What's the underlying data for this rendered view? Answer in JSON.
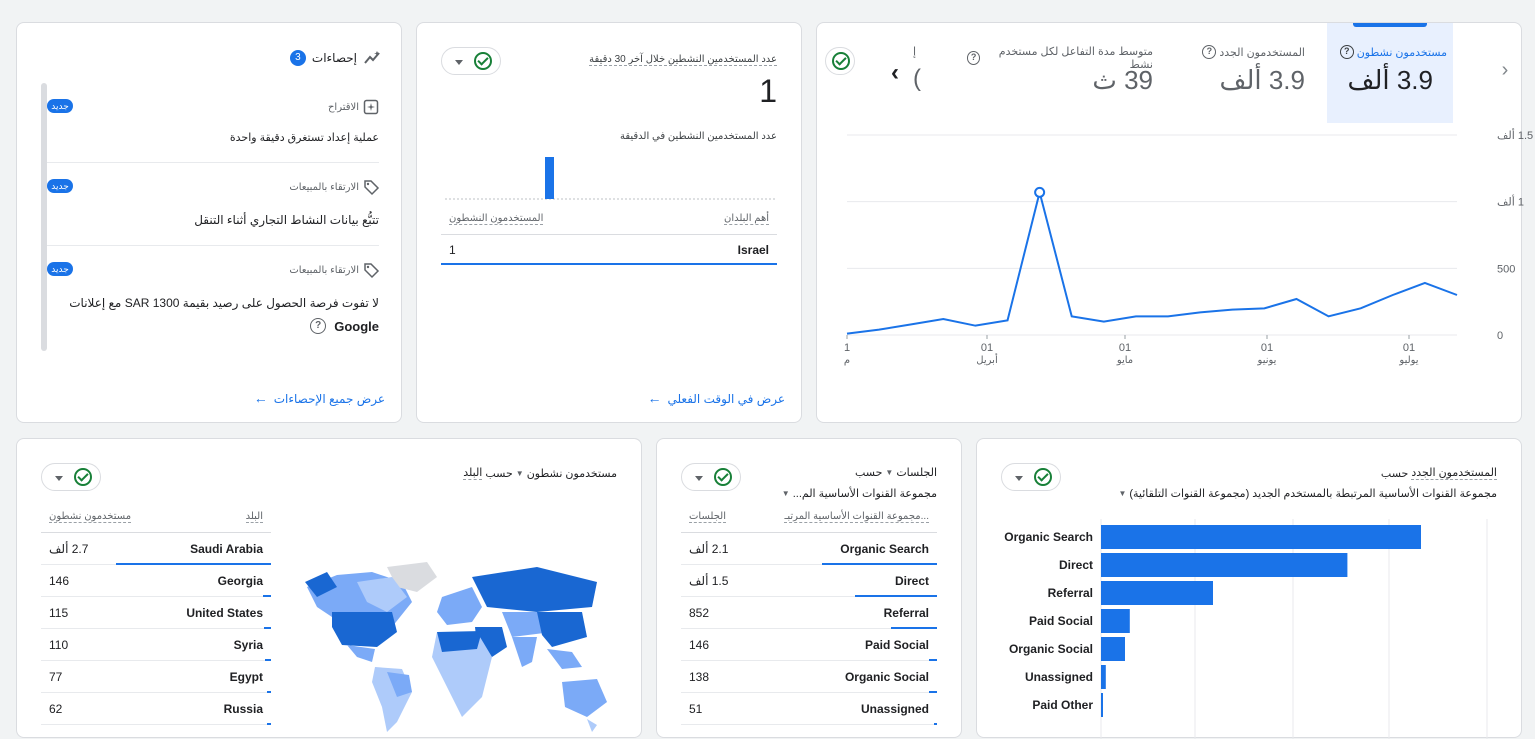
{
  "insights": {
    "title": "إحصاءات",
    "count": "3",
    "items": [
      {
        "category": "الاقتراح",
        "badge": "جديد",
        "text": "عملية إعداد تستغرق دقيقة واحدة"
      },
      {
        "category": "الارتقاء بالمبيعات",
        "badge": "جديد",
        "text": "تتبُّع بيانات النشاط التجاري أثناء التنقل"
      },
      {
        "category": "الارتقاء بالمبيعات",
        "badge": "جديد",
        "text": "لا تفوت فرصة الحصول على رصيد بقيمة 1300 SAR مع إعلانات",
        "text2": "Google"
      }
    ],
    "view_all": "عرض جميع الإحصاءات"
  },
  "realtime": {
    "title": "عدد المستخدمين النشطين خلال آخر 30 دقيقة",
    "value": "1",
    "subtitle": "عدد المستخدمين النشطين في الدقيقة",
    "col_country": "أهم البلدان",
    "col_users": "المستخدمون النشطون",
    "rows": [
      {
        "country": "Israel",
        "users": "1"
      }
    ],
    "view_link": "عرض في الوقت الفعلي"
  },
  "overview": {
    "tabs": [
      {
        "label": "مستخدمون نشطون",
        "value": "3.9 ألف"
      },
      {
        "label": "المستخدمون الجدد",
        "value": "3.9 ألف"
      },
      {
        "label": "متوسط مدة التفاعل لكل مستخدم نشط",
        "value": "39 ث"
      },
      {
        "label": "إ",
        "value": "("
      }
    ],
    "y_ticks": [
      "1.5 ألف",
      "1 ألف",
      "500",
      "0"
    ],
    "x_ticks": [
      {
        "day": "1",
        "month": "م"
      },
      {
        "day": "01",
        "month": "أبريل"
      },
      {
        "day": "01",
        "month": "مايو"
      },
      {
        "day": "01",
        "month": "يونيو"
      },
      {
        "day": "01",
        "month": "يوليو"
      }
    ]
  },
  "chart_data": {
    "type": "line",
    "series": [
      {
        "values": [
          10,
          40,
          80,
          120,
          70,
          110,
          1070,
          140,
          100,
          140,
          140,
          170,
          190,
          200,
          270,
          140,
          200,
          300,
          390,
          300
        ]
      }
    ],
    "ylim": [
      0,
      1500
    ]
  },
  "countries": {
    "title_metric": "مستخدمون نشطون",
    "title_by": "حسب",
    "title_dim": "البلد",
    "col_country": "البلد",
    "col_users": "مستخدمون نشطون",
    "rows": [
      {
        "label": "Saudi Arabia",
        "value": "2.7 ألف",
        "share": 1.0
      },
      {
        "label": "Georgia",
        "value": "146",
        "share": 0.054
      },
      {
        "label": "United States",
        "value": "115",
        "share": 0.043
      },
      {
        "label": "Syria",
        "value": "110",
        "share": 0.041
      },
      {
        "label": "Egypt",
        "value": "77",
        "share": 0.029
      },
      {
        "label": "Russia",
        "value": "62",
        "share": 0.023
      }
    ]
  },
  "sessions": {
    "title_metric": "الجلسات",
    "title_by": "حسب",
    "title_dim": "مجموعة القنوات الأساسية الم...",
    "col_channel": "مجموعة القنوات الأساسية المرتبـ...",
    "col_sessions": "الجلسات",
    "rows": [
      {
        "label": "Organic Search",
        "value": "2.1 ألف",
        "share": 1.0
      },
      {
        "label": "Direct",
        "value": "1.5 ألف",
        "share": 0.71
      },
      {
        "label": "Referral",
        "value": "852",
        "share": 0.4
      },
      {
        "label": "Paid Social",
        "value": "146",
        "share": 0.07
      },
      {
        "label": "Organic Social",
        "value": "138",
        "share": 0.066
      },
      {
        "label": "Unassigned",
        "value": "51",
        "share": 0.024
      }
    ]
  },
  "new_users": {
    "title_metric": "المستخدمون الجدد",
    "title_by": "حسب",
    "title_dim": "مجموعة القنوات الأساسية المرتبطة بالمستخدم الجديد (مجموعة القنوات التلقائية)",
    "bars": [
      {
        "label": "Organic Search",
        "share": 1.0
      },
      {
        "label": "Direct",
        "share": 0.77
      },
      {
        "label": "Referral",
        "share": 0.35
      },
      {
        "label": "Paid Social",
        "share": 0.09
      },
      {
        "label": "Organic Social",
        "share": 0.075
      },
      {
        "label": "Unassigned",
        "share": 0.015
      },
      {
        "label": "Paid Other",
        "share": 0.003
      }
    ]
  },
  "colors": {
    "accent": "#1a73e8",
    "selected_tab_bg": "#e8f0fe",
    "map_dark": "#1967d2",
    "map_mid": "#7baaf7",
    "map_light": "#aecbfa",
    "map_none": "#dadce0"
  }
}
